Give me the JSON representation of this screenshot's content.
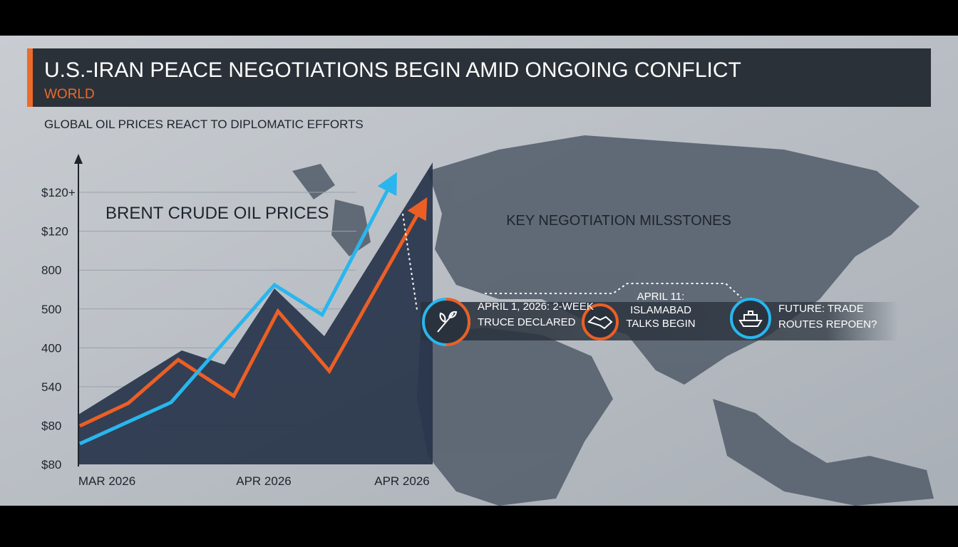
{
  "header": {
    "title": "U.S.-IRAN PEACE NEGOTIATIONS BEGIN AMID ONGOING CONFLICT",
    "section": "WORLD"
  },
  "subtitle": "GLOBAL OIL PRICES REACT TO DIPLOMATIC EFFORTS",
  "chart": {
    "title": "BRENT CRUDE OIL PRICES",
    "y_labels": [
      "$120+",
      "$120",
      "800",
      "500",
      "400",
      "540",
      "$80",
      "$80"
    ],
    "x_labels": [
      "MAR 2026",
      "APR 2026",
      "APR 2026"
    ]
  },
  "milestones": {
    "title": "KEY NEGOTIATION MILSSTONES",
    "items": [
      {
        "lines": [
          "APRIL 1, 2026: 2-WEEK",
          "TRUCE DECLARED"
        ]
      },
      {
        "lines": [
          "APRIL 11:",
          "ISLAMABAD",
          "TALKS BEGIN"
        ]
      },
      {
        "lines": [
          "FUTURE: TRADE",
          "ROUTES REPOEN?"
        ]
      }
    ]
  }
}
